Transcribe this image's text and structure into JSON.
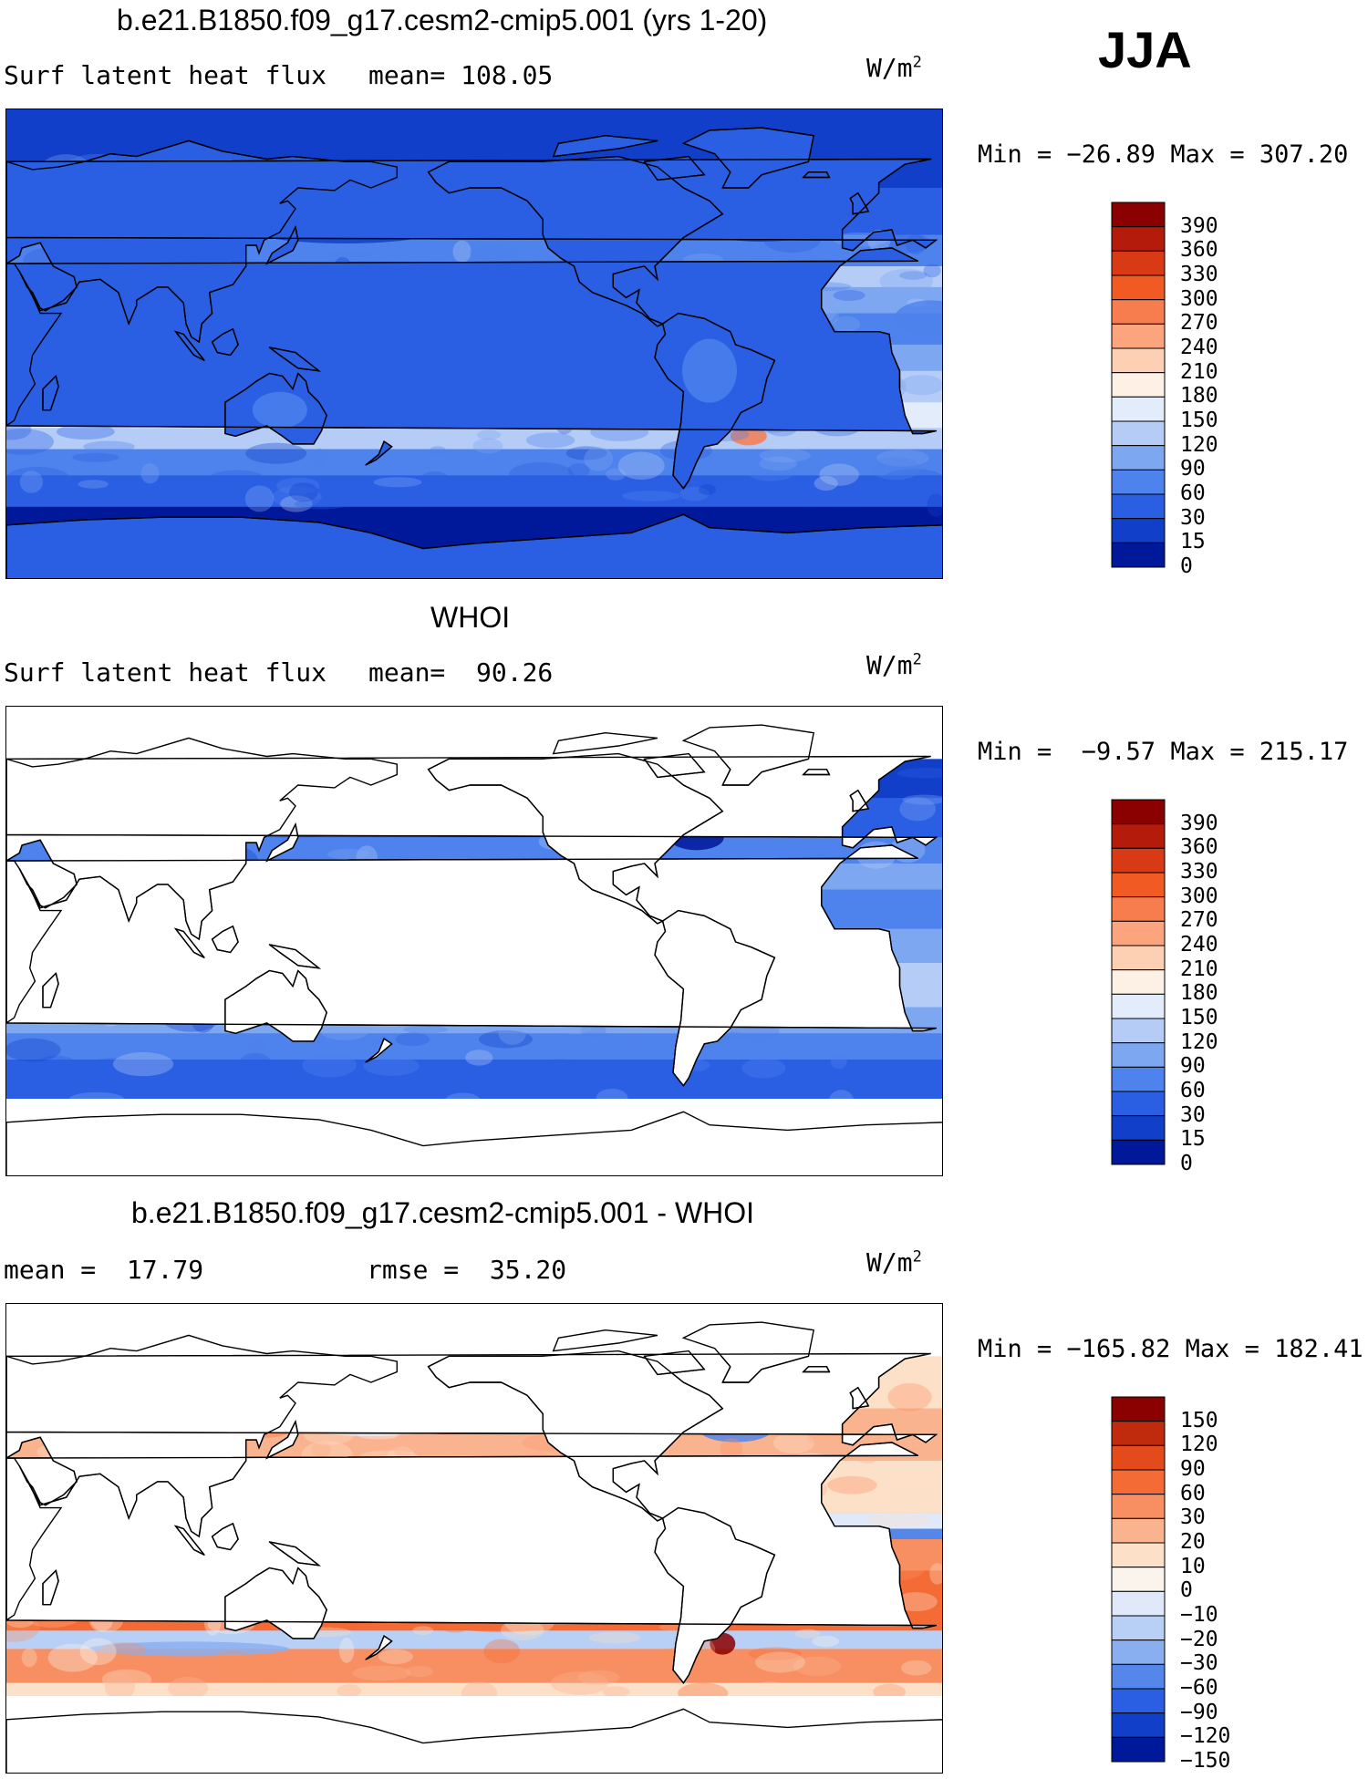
{
  "season": "JJA",
  "units": {
    "base": "W/m",
    "exp": "2"
  },
  "panels": [
    {
      "title": "b.e21.B1850.f09_g17.cesm2-cmip5.001 (yrs 1-20)",
      "subtitle_left": "Surf latent heat flux",
      "subtitle_right": "mean= 108.05",
      "minmax": "Min = −26.89 Max = 307.20",
      "colorbar": [
        "390",
        "360",
        "330",
        "300",
        "270",
        "240",
        "210",
        "180",
        "150",
        "120",
        "90",
        "60",
        "30",
        "15",
        "0"
      ]
    },
    {
      "title": "WHOI",
      "subtitle_left": "Surf latent heat flux",
      "subtitle_right": "mean=  90.26",
      "minmax": "Min =  −9.57 Max = 215.17",
      "colorbar": [
        "390",
        "360",
        "330",
        "300",
        "270",
        "240",
        "210",
        "180",
        "150",
        "120",
        "90",
        "60",
        "30",
        "15",
        "0"
      ]
    },
    {
      "title": "b.e21.B1850.f09_g17.cesm2-cmip5.001 - WHOI",
      "subtitle_left": "mean =  17.79",
      "subtitle_right": "rmse =  35.20",
      "minmax": "Min = −165.82 Max = 182.41",
      "colorbar": [
        "150",
        "120",
        "90",
        "60",
        "30",
        "20",
        "10",
        "0",
        "−10",
        "−20",
        "−30",
        "−60",
        "−90",
        "−120",
        "−150"
      ]
    }
  ],
  "colors": {
    "abs_scale": [
      "#8b0000",
      "#b51b0b",
      "#d83a15",
      "#f25a23",
      "#f77d4f",
      "#fba47e",
      "#fdd0b4",
      "#fdf0e4",
      "#e2ecfb",
      "#b5ccf7",
      "#7ea7f1",
      "#4e82ec",
      "#2a5fe3",
      "#123fca",
      "#00189a"
    ],
    "diff_scale": [
      "#8b0000",
      "#c02a0d",
      "#e34a1c",
      "#f56b35",
      "#f88f62",
      "#fab38f",
      "#fde0c8",
      "#fbf4ec",
      "#dfe9fa",
      "#b8cff6",
      "#8aaff1",
      "#5586ea",
      "#2a5fe3",
      "#123fca",
      "#00189a"
    ],
    "land": "#ffffff",
    "coast": "#000000"
  }
}
